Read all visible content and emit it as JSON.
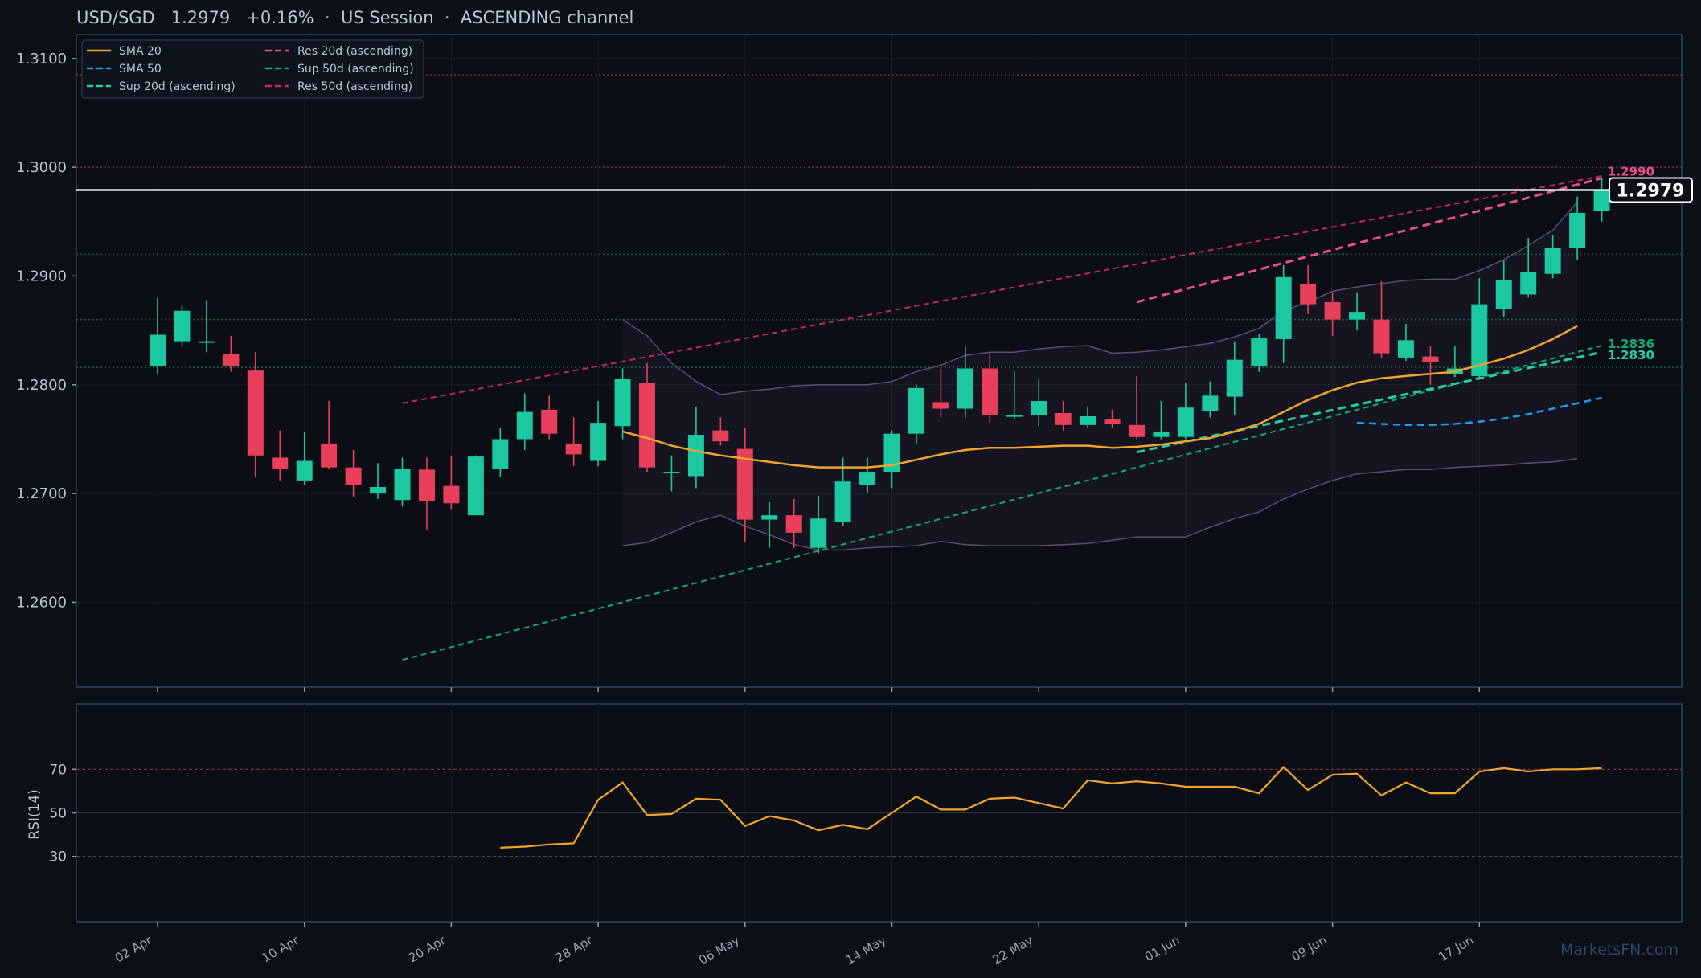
{
  "header": {
    "pair": "USD/SGD",
    "price": "1.2979",
    "change": "+0.16%",
    "session": "US Session",
    "channel": "ASCENDING channel",
    "separator": "·"
  },
  "watermark": "MarketsFN.com",
  "colors": {
    "background": "#0c0f15",
    "panel_border": "#27466a",
    "up": "#1cc8a0",
    "down": "#e8405a",
    "sma20": "#f0a52c",
    "sma50": "#1f9cf0",
    "sup20": "#22d0a8",
    "res20": "#e8508c",
    "sup50": "#14a878",
    "res50": "#c4285a",
    "band": "#5e4a78",
    "rsi": "#f0a52c"
  },
  "chart_data": [
    {
      "type": "candlestick",
      "title": "USD/SGD 1.2979 +0.16% · US Session · ASCENDING channel",
      "y_range": [
        1.2522,
        1.3122
      ],
      "yticks": [
        "1.2600",
        "1.2700",
        "1.2800",
        "1.2900",
        "1.3000",
        "1.3100"
      ],
      "xticks": [
        {
          "label": "02 Apr",
          "index": 0
        },
        {
          "label": "10 Apr",
          "index": 6
        },
        {
          "label": "20 Apr",
          "index": 12
        },
        {
          "label": "28 Apr",
          "index": 18
        },
        {
          "label": "06 May",
          "index": 24
        },
        {
          "label": "14 May",
          "index": 30
        },
        {
          "label": "22 May",
          "index": 36
        },
        {
          "label": "01 Jun",
          "index": 42
        },
        {
          "label": "09 Jun",
          "index": 48
        },
        {
          "label": "17 Jun",
          "index": 54
        }
      ],
      "legend": [
        {
          "label": "SMA 20",
          "key": "sma20",
          "dash": "solid"
        },
        {
          "label": "SMA 50",
          "key": "sma50",
          "dash": "dashed"
        },
        {
          "label": "Sup 20d (ascending)",
          "key": "sup20",
          "dash": "dashed"
        },
        {
          "label": "Res 20d (ascending)",
          "key": "res20",
          "dash": "dashed"
        },
        {
          "label": "Sup 50d (ascending)",
          "key": "sup50",
          "dash": "dashed"
        },
        {
          "label": "Res 50d (ascending)",
          "key": "res50",
          "dash": "dashed"
        }
      ],
      "candles": [
        [
          1.2817,
          1.288,
          1.281,
          1.2846
        ],
        [
          1.284,
          1.2873,
          1.2835,
          1.2868
        ],
        [
          1.284,
          1.2878,
          1.283,
          1.284
        ],
        [
          1.2828,
          1.2845,
          1.2812,
          1.2817
        ],
        [
          1.2813,
          1.283,
          1.2715,
          1.2735
        ],
        [
          1.2733,
          1.2758,
          1.2712,
          1.2723
        ],
        [
          1.2712,
          1.2757,
          1.2708,
          1.273
        ],
        [
          1.2746,
          1.2785,
          1.2722,
          1.2724
        ],
        [
          1.2724,
          1.274,
          1.2697,
          1.2708
        ],
        [
          1.27,
          1.2728,
          1.2695,
          1.2706
        ],
        [
          1.2694,
          1.2733,
          1.2688,
          1.2723
        ],
        [
          1.2722,
          1.2733,
          1.2666,
          1.2693
        ],
        [
          1.2707,
          1.2735,
          1.2685,
          1.2691
        ],
        [
          1.268,
          1.2735,
          1.268,
          1.2734
        ],
        [
          1.2723,
          1.276,
          1.2715,
          1.275
        ],
        [
          1.275,
          1.2792,
          1.274,
          1.2775
        ],
        [
          1.2777,
          1.279,
          1.275,
          1.2755
        ],
        [
          1.2746,
          1.277,
          1.2725,
          1.2736
        ],
        [
          1.273,
          1.2785,
          1.2725,
          1.2765
        ],
        [
          1.2762,
          1.2815,
          1.275,
          1.2805
        ],
        [
          1.2802,
          1.282,
          1.272,
          1.2724
        ],
        [
          1.272,
          1.2735,
          1.2702,
          1.272
        ],
        [
          1.2716,
          1.278,
          1.2705,
          1.2754
        ],
        [
          1.2758,
          1.277,
          1.2744,
          1.2748
        ],
        [
          1.2741,
          1.276,
          1.2655,
          1.2676
        ],
        [
          1.2676,
          1.2692,
          1.265,
          1.268
        ],
        [
          1.268,
          1.2695,
          1.265,
          1.2664
        ],
        [
          1.265,
          1.2698,
          1.2645,
          1.2677
        ],
        [
          1.2674,
          1.2733,
          1.267,
          1.2711
        ],
        [
          1.2708,
          1.2733,
          1.27,
          1.272
        ],
        [
          1.272,
          1.2758,
          1.2705,
          1.2755
        ],
        [
          1.2755,
          1.28,
          1.2745,
          1.2797
        ],
        [
          1.2784,
          1.2815,
          1.277,
          1.2778
        ],
        [
          1.2778,
          1.2835,
          1.277,
          1.2815
        ],
        [
          1.2815,
          1.283,
          1.2765,
          1.2772
        ],
        [
          1.2772,
          1.2812,
          1.2768,
          1.2772
        ],
        [
          1.2772,
          1.2805,
          1.2762,
          1.2785
        ],
        [
          1.2774,
          1.2785,
          1.2758,
          1.2763
        ],
        [
          1.2763,
          1.278,
          1.276,
          1.2771
        ],
        [
          1.2768,
          1.2777,
          1.276,
          1.2764
        ],
        [
          1.2763,
          1.2808,
          1.275,
          1.2752
        ],
        [
          1.2752,
          1.2785,
          1.275,
          1.2757
        ],
        [
          1.2752,
          1.2802,
          1.275,
          1.2779
        ],
        [
          1.2776,
          1.2803,
          1.277,
          1.279
        ],
        [
          1.2789,
          1.284,
          1.2772,
          1.2823
        ],
        [
          1.2817,
          1.2847,
          1.2812,
          1.2843
        ],
        [
          1.2842,
          1.291,
          1.282,
          1.2899
        ],
        [
          1.2893,
          1.291,
          1.2865,
          1.2874
        ],
        [
          1.2876,
          1.2885,
          1.2845,
          1.286
        ],
        [
          1.286,
          1.2885,
          1.285,
          1.2867
        ],
        [
          1.286,
          1.2895,
          1.2825,
          1.2829
        ],
        [
          1.2825,
          1.2856,
          1.2822,
          1.2841
        ],
        [
          1.2826,
          1.2836,
          1.28,
          1.2821
        ],
        [
          1.281,
          1.2836,
          1.2807,
          1.2815
        ],
        [
          1.2808,
          1.2898,
          1.2805,
          1.2874
        ],
        [
          1.287,
          1.2915,
          1.2862,
          1.2896
        ],
        [
          1.2883,
          1.2935,
          1.288,
          1.2904
        ],
        [
          1.2902,
          1.2938,
          1.2898,
          1.2926
        ],
        [
          1.2926,
          1.2973,
          1.2915,
          1.2958
        ],
        [
          1.296,
          1.299,
          1.295,
          1.2979
        ]
      ],
      "sma20": {
        "start": 19,
        "values": [
          1.2757,
          1.2751,
          1.2744,
          1.2739,
          1.2735,
          1.2732,
          1.2729,
          1.2726,
          1.2724,
          1.2724,
          1.2724,
          1.2726,
          1.2731,
          1.2736,
          1.274,
          1.2742,
          1.2742,
          1.2743,
          1.2744,
          1.2744,
          1.2742,
          1.2743,
          1.2745,
          1.2748,
          1.2751,
          1.2757,
          1.2764,
          1.2775,
          1.2786,
          1.2795,
          1.2802,
          1.2806,
          1.2808,
          1.281,
          1.2812,
          1.2818,
          1.2824,
          1.2832,
          1.2842,
          1.2854
        ]
      },
      "sma50": {
        "start": 49,
        "values": [
          1.2765,
          1.2764,
          1.2763,
          1.2763,
          1.2764,
          1.2766,
          1.2769,
          1.2773,
          1.2778,
          1.2783,
          1.2788
        ]
      },
      "band_upper": {
        "start": 19,
        "values": [
          1.286,
          1.2845,
          1.282,
          1.2803,
          1.2791,
          1.2794,
          1.2796,
          1.2799,
          1.28,
          1.28,
          1.28,
          1.2803,
          1.2812,
          1.2818,
          1.2827,
          1.283,
          1.283,
          1.2833,
          1.2835,
          1.2836,
          1.2829,
          1.283,
          1.2832,
          1.2835,
          1.2838,
          1.2844,
          1.2852,
          1.2868,
          1.2876,
          1.2886,
          1.289,
          1.2893,
          1.2896,
          1.2897,
          1.2897,
          1.2905,
          1.2915,
          1.2928,
          1.2942,
          1.2968
        ]
      },
      "band_lower": {
        "start": 19,
        "values": [
          1.2652,
          1.2655,
          1.2664,
          1.2674,
          1.268,
          1.267,
          1.2662,
          1.2653,
          1.2648,
          1.2648,
          1.265,
          1.2651,
          1.2652,
          1.2656,
          1.2653,
          1.2652,
          1.2652,
          1.2652,
          1.2653,
          1.2654,
          1.2657,
          1.266,
          1.266,
          1.266,
          1.2669,
          1.2677,
          1.2683,
          1.2695,
          1.2704,
          1.2712,
          1.2718,
          1.272,
          1.2722,
          1.2722,
          1.2724,
          1.2725,
          1.2726,
          1.2728,
          1.2729,
          1.2732
        ]
      },
      "trendlines": [
        {
          "key": "res50",
          "from": [
            10,
            1.2783
          ],
          "to": [
            59,
            1.2992
          ],
          "width": 2
        },
        {
          "key": "sup50",
          "from": [
            10,
            1.2547
          ],
          "to": [
            59,
            1.2836
          ],
          "width": 2
        },
        {
          "key": "res20",
          "from": [
            40,
            1.2876
          ],
          "to": [
            59,
            1.299
          ],
          "width": 3
        },
        {
          "key": "sup20",
          "from": [
            40,
            1.2738
          ],
          "to": [
            59,
            1.283
          ],
          "width": 3
        }
      ],
      "horizontal_levels": [
        {
          "value": 1.3085,
          "color": "#7a2a36"
        },
        {
          "value": 1.3,
          "color": "#7a2a36"
        },
        {
          "value": 1.292,
          "color": "#1f5a3e"
        },
        {
          "value": 1.286,
          "color": "#1f5a3e"
        },
        {
          "value": 1.2816,
          "color": "#1f5a3e"
        }
      ],
      "current_price": {
        "value": 1.2979,
        "label": "1.2979"
      },
      "end_labels": [
        {
          "label": "1.2990",
          "key": "res20",
          "value": 1.299
        },
        {
          "label": "1.2836",
          "key": "sup50",
          "value": 1.2836
        },
        {
          "label": "1.2830",
          "key": "sup20",
          "value": 1.283
        }
      ]
    },
    {
      "type": "line",
      "name": "RSI(14)",
      "ylabel": "RSI(14)",
      "y_range": [
        0,
        100
      ],
      "yticks": [
        "30",
        "50",
        "70"
      ],
      "levels": [
        70,
        50,
        30
      ],
      "start": 14,
      "values": [
        34,
        34.5,
        35.5,
        36,
        56,
        64,
        49,
        49.5,
        56.5,
        56,
        44,
        48.5,
        46.5,
        42,
        44.5,
        42.5,
        50,
        57.5,
        51.5,
        51.5,
        56.5,
        57,
        54.5,
        52,
        65,
        63.5,
        64.5,
        63.5,
        62,
        62,
        62,
        59,
        71,
        60.5,
        67.5,
        68,
        58,
        64,
        59,
        59,
        69,
        70.5,
        69,
        70,
        70,
        70.5
      ]
    }
  ]
}
